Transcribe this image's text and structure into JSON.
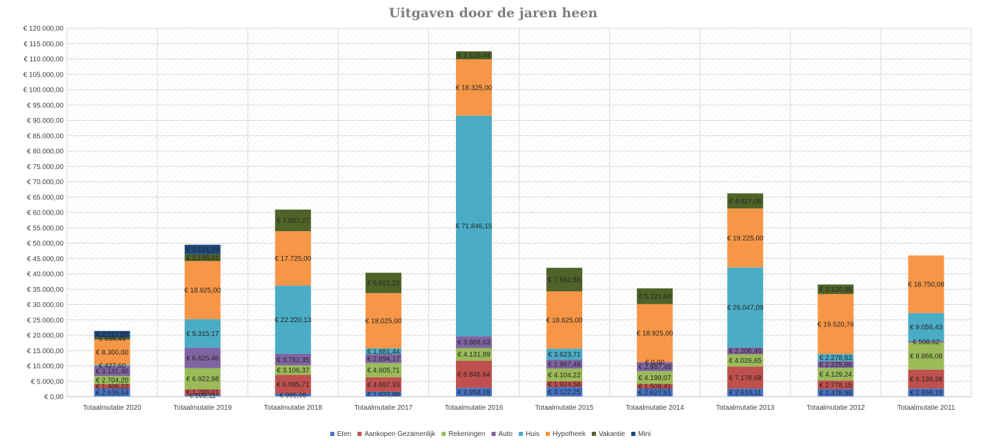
{
  "chart_data": {
    "type": "bar",
    "stacked": true,
    "title": "Uitgaven door de jaren heen",
    "xlabel": "",
    "ylabel": "",
    "ylim": [
      0,
      120000
    ],
    "ytick_step": 5000,
    "grid": true,
    "legend_position": "bottom",
    "categories": [
      "Totaalmutatie 2020",
      "Totaalmutatie 2019",
      "Totaalmutatie 2018",
      "Totaalmutatie 2017",
      "Totaalmutatie 2016",
      "Totaalmutatie 2015",
      "Totaalmutatie 2014",
      "Totaalmutatie 2013",
      "Totaalmutatie 2012",
      "Totaalmutatie 2011"
    ],
    "series": [
      {
        "name": "Eten",
        "color": "#4472c4",
        "values": [
          2639.64,
          599.11,
          995.08,
          1633.98,
          2858.18,
          3122.25,
          2627.51,
          2610.11,
          2478.99,
          2658.19
        ],
        "labels": [
          "€ 2.639,64",
          "€ 599,11",
          "€ 995,08",
          "€ 1.633,98",
          "€ 2.858,18",
          "€ 3.122,25",
          "€ 2.627,51",
          "€ 2.610,11",
          "€ 2.478,99",
          "€ 2.658,19"
        ]
      },
      {
        "name": "Aankopen Gezamenlijk",
        "color": "#c0504d",
        "values": [
          1408.22,
          1788.01,
          6095.71,
          4697.33,
          8846.64,
          1924.58,
          1508.41,
          7178.68,
          2778.15,
          6139.28
        ],
        "labels": [
          "€ 1.408,22",
          "€ 1.788,01",
          "€ 6.095,71",
          "€ 4.697,33",
          "€ 8.846,64",
          "€ 1.924,58",
          "€ 1.508,41",
          "€ 7.178,68",
          "€ 2.778,15",
          "€ 6.139,28"
        ]
      },
      {
        "name": "Rekeningen",
        "color": "#9bbb59",
        "values": [
          2704.2,
          6922.98,
          3106.37,
          4605.71,
          4131.99,
          4104.22,
          4198.07,
          4026.65,
          4129.24,
          8866.08
        ],
        "labels": [
          "€ 2.704,20",
          "€ 6.922,98",
          "€ 3.106,37",
          "€ 4.605,71",
          "€ 4.131,99",
          "€ 4.104,22",
          "€ 4.198,07",
          "€ 4.026,65",
          "€ 4.129,24",
          "€ 8.866,08"
        ]
      },
      {
        "name": "Auto",
        "color": "#8064a2",
        "values": [
          3141.4,
          6625.46,
          3752.35,
          2894.17,
          3868.63,
          2887.48,
          2887.48,
          2206.46,
          2225.86,
          508.62
        ],
        "labels": [
          "€ 3.141,40",
          "€ 6.625,46",
          "€ 3.752,35",
          "€ 2.894,17",
          "€ 3.868,63",
          "€ 2.887,48",
          "€ 2.887,48",
          "€ 2.206,46",
          "€ 2.225,86",
          "€ 508,62"
        ]
      },
      {
        "name": "Huis",
        "color": "#4bacc6",
        "values": [
          427.6,
          9315.17,
          22220.13,
          1881.44,
          71846.15,
          3623.71,
          0,
          26047.09,
          2278.83,
          9056.43
        ],
        "labels": [
          "€ 427,60",
          "€ 9.315,17",
          "€ 22.220,13",
          "€ 1.881,44",
          "€ 71.846,15",
          "€ 3.623,71",
          "€ 0,00",
          "€ 26.047,09",
          "€ 2.278,83",
          "€ 9.056,43"
        ]
      },
      {
        "name": "Hypotheek",
        "color": "#f79646",
        "values": [
          8300.0,
          18925.0,
          17725.0,
          18025.0,
          18325.0,
          18625.0,
          18925.0,
          19225.0,
          19520.76,
          18750.08
        ],
        "labels": [
          "€ 8.300,00",
          "€ 18.925,00",
          "€ 17.725,00",
          "€ 18.025,00",
          "€ 18.325,00",
          "€ 18.625,00",
          "€ 18.925,00",
          "€ 19.225,00",
          "€ 19.520,76",
          "€ 18.750,08"
        ]
      },
      {
        "name": "Vakantie",
        "color": "#4f6228",
        "values": [
          659.49,
          2195.41,
          7037.27,
          6621.23,
          2625.44,
          7681.55,
          5121.64,
          4927.06,
          3120.96,
          0
        ],
        "labels": [
          "€ 659,49",
          "€ 2.195,41",
          "€ 7.037,27",
          "€ 6.621,23",
          "€ 2.625,44",
          "€ 7.681,55",
          "€ 5.121,64",
          "€ 4.927,06",
          "€ 3.120,96",
          ""
        ]
      },
      {
        "name": "Mini",
        "color": "#1f497d",
        "values": [
          2117.0,
          3121.78,
          0,
          0,
          0,
          0,
          0,
          0,
          0,
          0
        ],
        "labels": [
          "€ 2.117,00",
          "€ 3.121,78",
          "",
          "",
          "",
          "",
          "",
          "",
          "",
          ""
        ]
      }
    ],
    "yticks": [
      "€ 0,00",
      "€ 5.000,00",
      "€ 10.000,00",
      "€ 15.000,00",
      "€ 20.000,00",
      "€ 25.000,00",
      "€ 30.000,00",
      "€ 35.000,00",
      "€ 40.000,00",
      "€ 45.000,00",
      "€ 50.000,00",
      "€ 55.000,00",
      "€ 60.000,00",
      "€ 65.000,00",
      "€ 70.000,00",
      "€ 75.000,00",
      "€ 80.000,00",
      "€ 85.000,00",
      "€ 90.000,00",
      "€ 95.000,00",
      "€ 100.000,00",
      "€ 105.000,00",
      "€ 110.000,00",
      "€ 115.000,00",
      "€ 120.000,00"
    ]
  }
}
